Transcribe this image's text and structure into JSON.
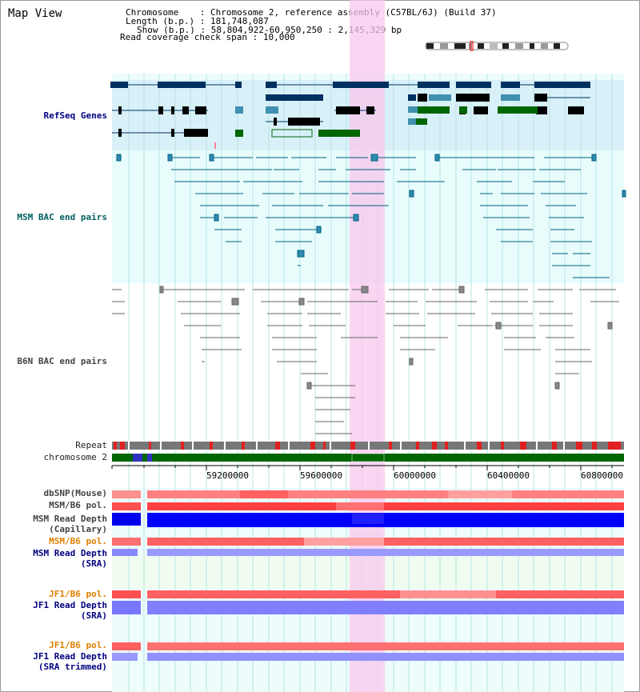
{
  "view_title": "Map View",
  "info": {
    "chromosome_label": "Chromosome",
    "chromosome_value": "Chromosome 2, reference assembly (C57BL/6J) (Build 37)",
    "length_label": "Length (b.p.)",
    "length_value": "181,748,087",
    "show_label": "Show (b.p.)",
    "show_value": "58,804,922-60,950,250 : 2,145,329 bp",
    "coverage_label": "Read coverage check span",
    "coverage_value": "10,000"
  },
  "tracks": {
    "refseq": "RefSeq Genes",
    "msm_bac": "MSM BAC end pairs",
    "b6n_bac": "B6N BAC end pairs",
    "repeat": "Repeat",
    "chromosome": "chromosome 2",
    "dbsnp": "dbSNP(Mouse)",
    "msm_b6_pol": "MSM/B6 pol.",
    "msm_read_depth_cap_1": "MSM Read Depth",
    "msm_read_depth_cap_2": "(Capillary)",
    "msm_b6_pol_2": "MSM/B6 pol.",
    "msm_read_depth_sra_1": "MSM Read Depth",
    "msm_read_depth_sra_2": "(SRA)",
    "jf1_b6_pol": "JF1/B6 pol.",
    "jf1_read_depth_sra_1": "JF1 Read Depth",
    "jf1_read_depth_sra_2": "(SRA)",
    "jf1_b6_pol_2": "JF1/B6 pol.",
    "jf1_read_depth_trim_1": "JF1 Read Depth",
    "jf1_read_depth_trim_2": "(SRA trimmed)"
  },
  "axis_ticks": [
    "59200000",
    "59600000",
    "60000000",
    "60400000",
    "60800000"
  ],
  "colors": {
    "highlight": "#f8d0f0",
    "refseq_bg": "#d8f0f8",
    "bac_bg": "#e8fcfc",
    "gene_navy": "#003060",
    "gene_green": "#006600",
    "msm_teal": "#006080",
    "b6n_grey": "#666666",
    "depth_blue": "#0000ff",
    "depth_lightblue": "#8888ff",
    "snp_red": "#ff4040"
  }
}
